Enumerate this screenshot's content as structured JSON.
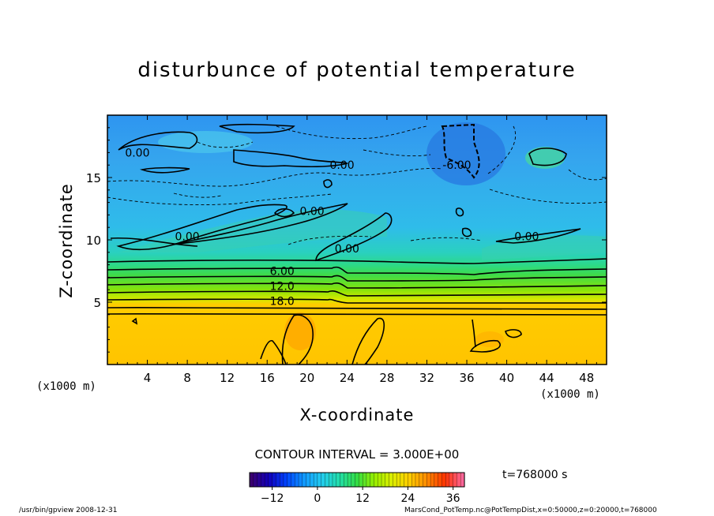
{
  "title": "disturbunce of potential temperature",
  "contour_interval": "CONTOUR INTERVAL = 3.000E+00",
  "time_label": "t=768000 s",
  "footer_left": "/usr/bin/gpview   2008-12-31",
  "footer_right": "MarsCond_PotTemp.nc@PotTempDist,x=0:50000,z=0:20000,t=768000",
  "colors": {
    "positive_band": "#ffcc00",
    "negative_background": "#44aaee",
    "gradient_band": "#66dd33",
    "contour": "#000000"
  },
  "chart_data": {
    "type": "heatmap",
    "title": "disturbunce of potential temperature",
    "xlabel": "X-coordinate",
    "ylabel": "Z-coordinate",
    "x_unit": "(x1000 m)",
    "y_unit": "(x1000 m)",
    "xlim": [
      0,
      50
    ],
    "ylim": [
      0,
      20
    ],
    "x_ticks": [
      4,
      8,
      12,
      16,
      20,
      24,
      28,
      32,
      36,
      40,
      44,
      48
    ],
    "y_ticks": [
      5,
      10,
      15
    ],
    "contour_interval": 3.0,
    "contour_labels": [
      {
        "text": "0.00",
        "x": 3.0,
        "z": 17.0
      },
      {
        "text": "0.00",
        "x": 23.5,
        "z": 16.0
      },
      {
        "text": "-6.00",
        "x": 35.0,
        "z": 16.0
      },
      {
        "text": "0.00",
        "x": 20.5,
        "z": 12.3
      },
      {
        "text": "0.00",
        "x": 8.0,
        "z": 10.3
      },
      {
        "text": "0.00",
        "x": 24.0,
        "z": 9.3
      },
      {
        "text": "0.00",
        "x": 42.0,
        "z": 10.3
      },
      {
        "text": "6.00",
        "x": 17.5,
        "z": 7.5
      },
      {
        "text": "12.0",
        "x": 17.5,
        "z": 6.3
      },
      {
        "text": "18.0",
        "x": 17.5,
        "z": 5.1
      }
    ],
    "colorbar": {
      "ticks": [
        -12,
        0,
        12,
        24,
        36
      ],
      "range": [
        -18,
        39
      ],
      "colors": [
        "#3a0070",
        "#1100bb",
        "#0044ff",
        "#1199ff",
        "#22ccee",
        "#22ddaa",
        "#33dd44",
        "#99ee00",
        "#ddee00",
        "#ffcc00",
        "#ff8800",
        "#ff3300",
        "#ff6699"
      ]
    }
  }
}
